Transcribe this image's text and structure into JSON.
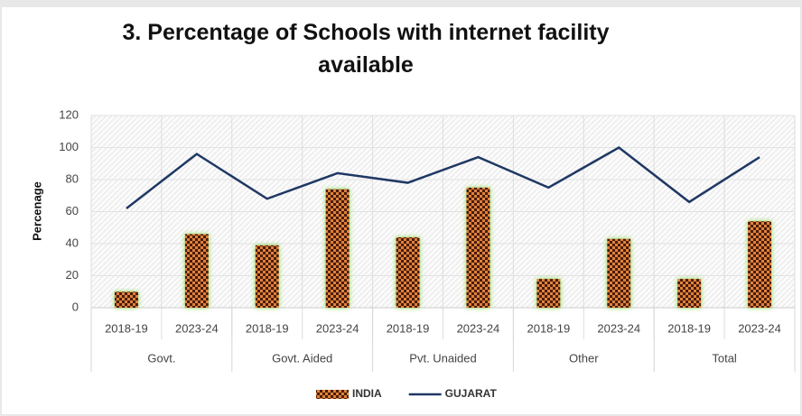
{
  "chart_data": {
    "type": "combo",
    "title": "3. Percentage of Schools with internet facility available",
    "ylabel": "Percenage",
    "categories": [
      "2018-19",
      "2023-24",
      "2018-19",
      "2023-24",
      "2018-19",
      "2023-24",
      "2018-19",
      "2023-24",
      "2018-19",
      "2023-24"
    ],
    "groups": [
      "Govt.",
      "Govt. Aided",
      "Pvt. Unaided",
      "Other",
      "Total"
    ],
    "series": [
      {
        "name": "INDIA",
        "type": "bar",
        "color": "#d9782e",
        "values": [
          10,
          46,
          39,
          74,
          44,
          75,
          18,
          43,
          18,
          54
        ]
      },
      {
        "name": "GUJARAT",
        "type": "line",
        "color": "#1f3864",
        "values": [
          62,
          96,
          68,
          84,
          78,
          94,
          75,
          100,
          66,
          94
        ]
      }
    ],
    "ylim": [
      0,
      120
    ],
    "yticks": [
      0,
      20,
      40,
      60,
      80,
      100,
      120
    ],
    "grid": true,
    "legend": "bottom"
  }
}
